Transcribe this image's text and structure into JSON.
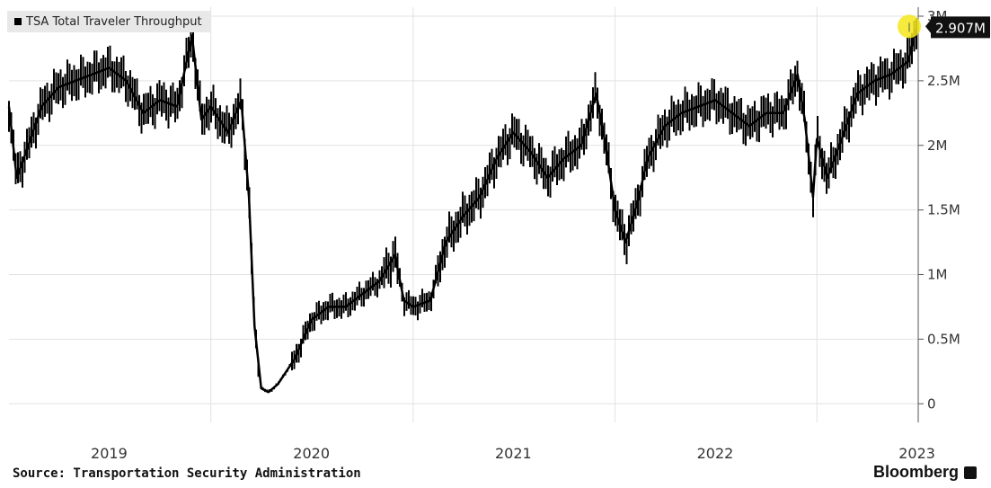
{
  "chart_data": {
    "type": "line",
    "legend": "TSA Total Traveler Throughput",
    "source": "Source: Transportation Security Administration",
    "brand": "Bloomberg",
    "last_value_label": "2.907M",
    "last_value": 2.907,
    "y_unit": "M travelers",
    "ylim": [
      -0.2,
      3.0
    ],
    "y_ticks": [
      {
        "value": 0,
        "label": "0"
      },
      {
        "value": 0.5,
        "label": "0.5M"
      },
      {
        "value": 1,
        "label": "1M"
      },
      {
        "value": 1.5,
        "label": "1.5M"
      },
      {
        "value": 2,
        "label": "2M"
      },
      {
        "value": 2.5,
        "label": "2.5M"
      },
      {
        "value": 3,
        "label": "3M"
      }
    ],
    "xlim": [
      "2019-01-01",
      "2023-06-30"
    ],
    "x_ticks": [
      {
        "value": "2019-07-01",
        "label": "2019"
      },
      {
        "value": "2020-07-01",
        "label": "2020"
      },
      {
        "value": "2021-07-01",
        "label": "2021"
      },
      {
        "value": "2022-07-01",
        "label": "2022"
      },
      {
        "value": "2023-07-01",
        "label": "2023"
      }
    ],
    "x_gridlines": [
      "2020-01-01",
      "2021-01-01",
      "2022-01-01",
      "2023-01-01"
    ],
    "grid": true,
    "legend_position": "top-left",
    "line_color": "#000000",
    "highlight_color": "#f5e61a",
    "series": [
      {
        "points": [
          {
            "x": "2019-01-01",
            "y": 2.3
          },
          {
            "x": "2019-01-15",
            "y": 1.75
          },
          {
            "x": "2019-02-01",
            "y": 1.95
          },
          {
            "x": "2019-03-01",
            "y": 2.3
          },
          {
            "x": "2019-04-01",
            "y": 2.45
          },
          {
            "x": "2019-05-01",
            "y": 2.5
          },
          {
            "x": "2019-06-01",
            "y": 2.55
          },
          {
            "x": "2019-07-01",
            "y": 2.6
          },
          {
            "x": "2019-08-01",
            "y": 2.5
          },
          {
            "x": "2019-09-01",
            "y": 2.25
          },
          {
            "x": "2019-10-01",
            "y": 2.35
          },
          {
            "x": "2019-11-01",
            "y": 2.3
          },
          {
            "x": "2019-11-28",
            "y": 2.85
          },
          {
            "x": "2019-12-15",
            "y": 2.2
          },
          {
            "x": "2020-01-01",
            "y": 2.3
          },
          {
            "x": "2020-02-01",
            "y": 2.1
          },
          {
            "x": "2020-02-25",
            "y": 2.35
          },
          {
            "x": "2020-03-10",
            "y": 1.6
          },
          {
            "x": "2020-03-20",
            "y": 0.6
          },
          {
            "x": "2020-04-01",
            "y": 0.12
          },
          {
            "x": "2020-04-14",
            "y": 0.09
          },
          {
            "x": "2020-05-01",
            "y": 0.15
          },
          {
            "x": "2020-06-01",
            "y": 0.35
          },
          {
            "x": "2020-07-01",
            "y": 0.65
          },
          {
            "x": "2020-08-01",
            "y": 0.75
          },
          {
            "x": "2020-09-01",
            "y": 0.75
          },
          {
            "x": "2020-10-01",
            "y": 0.85
          },
          {
            "x": "2020-11-01",
            "y": 0.95
          },
          {
            "x": "2020-11-29",
            "y": 1.15
          },
          {
            "x": "2020-12-15",
            "y": 0.8
          },
          {
            "x": "2021-01-01",
            "y": 0.75
          },
          {
            "x": "2021-02-01",
            "y": 0.8
          },
          {
            "x": "2021-03-01",
            "y": 1.25
          },
          {
            "x": "2021-04-01",
            "y": 1.45
          },
          {
            "x": "2021-05-01",
            "y": 1.6
          },
          {
            "x": "2021-06-01",
            "y": 1.9
          },
          {
            "x": "2021-07-01",
            "y": 2.1
          },
          {
            "x": "2021-08-01",
            "y": 1.95
          },
          {
            "x": "2021-09-01",
            "y": 1.75
          },
          {
            "x": "2021-10-01",
            "y": 1.9
          },
          {
            "x": "2021-11-01",
            "y": 2.0
          },
          {
            "x": "2021-11-28",
            "y": 2.4
          },
          {
            "x": "2021-12-15",
            "y": 2.0
          },
          {
            "x": "2022-01-01",
            "y": 1.5
          },
          {
            "x": "2022-01-20",
            "y": 1.25
          },
          {
            "x": "2022-02-10",
            "y": 1.55
          },
          {
            "x": "2022-03-01",
            "y": 1.9
          },
          {
            "x": "2022-04-01",
            "y": 2.15
          },
          {
            "x": "2022-05-01",
            "y": 2.25
          },
          {
            "x": "2022-06-01",
            "y": 2.3
          },
          {
            "x": "2022-07-01",
            "y": 2.35
          },
          {
            "x": "2022-08-01",
            "y": 2.25
          },
          {
            "x": "2022-09-01",
            "y": 2.15
          },
          {
            "x": "2022-10-01",
            "y": 2.25
          },
          {
            "x": "2022-11-01",
            "y": 2.25
          },
          {
            "x": "2022-11-27",
            "y": 2.55
          },
          {
            "x": "2022-12-10",
            "y": 2.2
          },
          {
            "x": "2022-12-25",
            "y": 1.6
          },
          {
            "x": "2023-01-01",
            "y": 2.05
          },
          {
            "x": "2023-01-20",
            "y": 1.75
          },
          {
            "x": "2023-02-15",
            "y": 2.05
          },
          {
            "x": "2023-03-15",
            "y": 2.4
          },
          {
            "x": "2023-04-15",
            "y": 2.5
          },
          {
            "x": "2023-05-15",
            "y": 2.55
          },
          {
            "x": "2023-06-15",
            "y": 2.65
          },
          {
            "x": "2023-06-30",
            "y": 2.907
          }
        ]
      }
    ]
  }
}
